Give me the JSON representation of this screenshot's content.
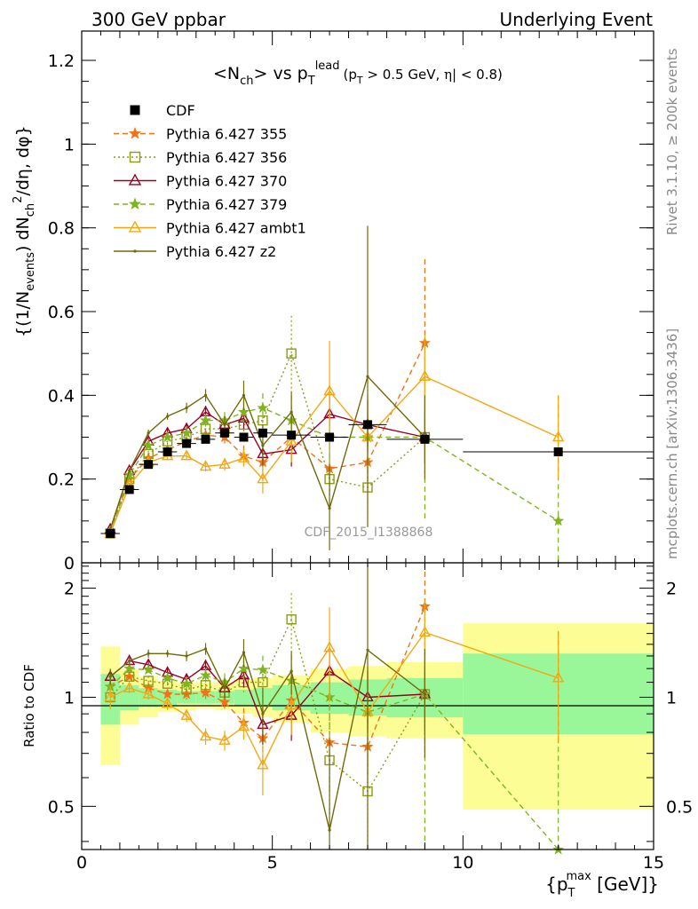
{
  "header": {
    "left": "300 GeV ppbar",
    "right": "Underlying Event"
  },
  "side_labels": {
    "rivet": "Rivet 3.1.10, ≥ 200k events",
    "mcplots": "mcplots.cern.ch [arXiv:1306.3436]"
  },
  "watermark": "CDF_2015_I1388868",
  "chart_data": [
    {
      "type": "line",
      "panel": "main",
      "title": "<N_ch> vs p_T^lead (p_T > 0.5 GeV, |η| < 0.8)",
      "title_parts": {
        "a": "<N",
        "a_sub": "ch",
        "b": "> vs p",
        "b_sub": "T",
        "b_sup": "lead",
        "c": "(p",
        "c_sub": "T",
        "d": " > 0.5 GeV, ",
        "e": "η",
        "f": "| < 0.8)"
      },
      "ylabel": "{(1/N_events) dN_ch^2/dη, dφ}",
      "ylabel_parts": {
        "a": "{(1/N",
        "a_sub": "events",
        "b": ") dN",
        "b_sub": "ch",
        "b_sup": "2",
        "c": "/dη, dφ}"
      },
      "xlim": [
        0,
        15
      ],
      "ylim": [
        0,
        1.27
      ],
      "yticks": [
        0,
        0.2,
        0.4,
        0.6,
        0.8,
        1,
        1.2
      ],
      "ytick_labels": [
        "0",
        "0.2",
        "0.4",
        "0.6",
        "0.8",
        "1",
        "1.2"
      ],
      "legend": [
        {
          "label": "CDF",
          "color": "#000000",
          "marker": "square-filled",
          "dash": "none"
        },
        {
          "label": "Pythia 6.427 355",
          "color": "#f47216",
          "marker": "star",
          "dash": "dashed"
        },
        {
          "label": "Pythia 6.427 356",
          "color": "#8d9a13",
          "marker": "square-open",
          "dash": "dotted"
        },
        {
          "label": "Pythia 6.427 370",
          "color": "#990022",
          "marker": "triangle-open",
          "dash": "solid"
        },
        {
          "label": "Pythia 6.427 379",
          "color": "#7fb41f",
          "marker": "star",
          "dash": "dashed"
        },
        {
          "label": "Pythia 6.427 ambt1",
          "color": "#f3a712",
          "marker": "triangle-open",
          "dash": "solid"
        },
        {
          "label": "Pythia 6.427 z2",
          "color": "#6f6a0a",
          "marker": "dot",
          "dash": "solid"
        }
      ],
      "cdf": {
        "x": [
          0.75,
          1.25,
          1.75,
          2.25,
          2.75,
          3.25,
          3.75,
          4.25,
          4.75,
          5.5,
          6.5,
          7.5,
          9,
          12.5
        ],
        "xerr": [
          0.25,
          0.25,
          0.25,
          0.25,
          0.25,
          0.25,
          0.25,
          0.25,
          0.25,
          0.5,
          0.5,
          0.5,
          1,
          2.5
        ],
        "y": [
          0.07,
          0.175,
          0.235,
          0.265,
          0.285,
          0.295,
          0.31,
          0.3,
          0.31,
          0.305,
          0.3,
          0.33,
          0.295,
          0.265
        ]
      },
      "series": [
        {
          "name": "Pythia 6.427 355",
          "x": [
            0.75,
            1.25,
            1.75,
            2.25,
            2.75,
            3.25,
            3.75,
            4.25,
            4.75,
            5.5,
            6.5,
            7.5,
            9
          ],
          "y": [
            0.075,
            0.2,
            0.25,
            0.27,
            0.29,
            0.305,
            0.3,
            0.255,
            0.24,
            0.3,
            0.225,
            0.24,
            0.525
          ],
          "err": [
            0.005,
            0.006,
            0.008,
            0.008,
            0.01,
            0.012,
            0.015,
            0.025,
            0.03,
            0.04,
            0.06,
            0.05,
            0.2
          ]
        },
        {
          "name": "Pythia 6.427 356",
          "x": [
            0.75,
            1.25,
            1.75,
            2.25,
            2.75,
            3.25,
            3.75,
            4.25,
            4.75,
            5.5,
            6.5,
            7.5,
            9
          ],
          "y": [
            0.07,
            0.2,
            0.26,
            0.29,
            0.3,
            0.32,
            0.32,
            0.33,
            0.34,
            0.5,
            0.2,
            0.18,
            0.3
          ],
          "err": [
            0.005,
            0.006,
            0.008,
            0.008,
            0.01,
            0.012,
            0.015,
            0.02,
            0.03,
            0.09,
            0.06,
            0.06,
            0.1
          ]
        },
        {
          "name": "Pythia 6.427 370",
          "x": [
            0.75,
            1.25,
            1.75,
            2.25,
            2.75,
            3.25,
            3.75,
            4.25,
            4.75,
            5.5,
            6.5,
            7.5,
            9
          ],
          "y": [
            0.08,
            0.22,
            0.29,
            0.31,
            0.32,
            0.36,
            0.33,
            0.345,
            0.26,
            0.27,
            0.355,
            0.33,
            0.3
          ],
          "err": [
            0.004,
            0.006,
            0.008,
            0.01,
            0.012,
            0.015,
            0.02,
            0.025,
            0.03,
            0.04,
            0.06,
            0.06,
            0.06
          ]
        },
        {
          "name": "Pythia 6.427 379",
          "x": [
            0.75,
            1.25,
            1.75,
            2.25,
            2.75,
            3.25,
            3.75,
            4.25,
            4.75,
            5.5,
            6.5,
            7.5,
            9,
            12.5
          ],
          "y": [
            0.075,
            0.21,
            0.28,
            0.3,
            0.31,
            0.34,
            0.34,
            0.36,
            0.37,
            0.34,
            0.3,
            0.3,
            0.3,
            0.1
          ],
          "err": [
            0.005,
            0.006,
            0.008,
            0.01,
            0.012,
            0.015,
            0.02,
            0.025,
            0.035,
            0.06,
            0.06,
            0.06,
            0.2,
            0.3
          ]
        },
        {
          "name": "Pythia 6.427 ambt1",
          "x": [
            0.75,
            1.25,
            1.75,
            2.25,
            2.75,
            3.25,
            3.75,
            4.25,
            4.75,
            5.5,
            6.5,
            7.5,
            9,
            12.5
          ],
          "y": [
            0.07,
            0.185,
            0.24,
            0.255,
            0.255,
            0.23,
            0.235,
            0.25,
            0.2,
            0.29,
            0.41,
            0.3,
            0.445,
            0.3
          ],
          "err": [
            0.005,
            0.006,
            0.008,
            0.01,
            0.01,
            0.012,
            0.015,
            0.02,
            0.035,
            0.05,
            0.12,
            0.1,
            0.1,
            0.1
          ]
        },
        {
          "name": "Pythia 6.427 z2",
          "x": [
            0.75,
            1.25,
            1.75,
            2.25,
            2.75,
            3.25,
            3.75,
            4.25,
            4.75,
            5.5,
            6.5,
            7.5,
            9
          ],
          "y": [
            0.08,
            0.22,
            0.31,
            0.35,
            0.37,
            0.4,
            0.33,
            0.4,
            0.28,
            0.36,
            0.13,
            0.445,
            0.3
          ],
          "err": [
            0.004,
            0.006,
            0.008,
            0.008,
            0.012,
            0.015,
            0.02,
            0.035,
            0.05,
            0.05,
            0.1,
            0.36,
            0.1
          ]
        }
      ]
    },
    {
      "type": "line",
      "panel": "ratio",
      "ylabel": "Ratio to CDF",
      "xlabel": "{p_T^max [GeV]}",
      "xlabel_parts": {
        "a": "{p",
        "sub": "T",
        "sup": "max",
        "b": " [GeV]}"
      },
      "xlim": [
        0,
        15
      ],
      "ylim": [
        0.38,
        2.35
      ],
      "yscale": "log",
      "xticks": [
        0,
        5,
        10,
        15
      ],
      "xtick_labels": [
        "0",
        "5",
        "10",
        "15"
      ],
      "yticks": [
        0.5,
        1,
        2
      ],
      "ytick_labels": [
        "0.5",
        "1",
        "2"
      ],
      "uncertainty_bands": {
        "x_edges": [
          0.5,
          1,
          1.5,
          2,
          2.5,
          3,
          3.5,
          4,
          4.5,
          5,
          6,
          7,
          8,
          10,
          15
        ],
        "yellow_low": [
          0.65,
          0.84,
          0.88,
          0.91,
          0.92,
          0.93,
          0.92,
          0.9,
          0.88,
          0.85,
          0.8,
          0.78,
          0.77,
          0.49
        ],
        "yellow_high": [
          1.38,
          1.2,
          1.14,
          1.11,
          1.1,
          1.1,
          1.1,
          1.12,
          1.13,
          1.15,
          1.2,
          1.22,
          1.25,
          1.6
        ],
        "green_low": [
          0.84,
          0.92,
          0.94,
          0.95,
          0.96,
          0.96,
          0.96,
          0.95,
          0.94,
          0.92,
          0.9,
          0.89,
          0.88,
          0.79
        ],
        "green_high": [
          1.16,
          1.08,
          1.06,
          1.05,
          1.04,
          1.04,
          1.04,
          1.05,
          1.06,
          1.08,
          1.1,
          1.12,
          1.13,
          1.32
        ]
      },
      "series": [
        {
          "name": "Pythia 6.427 355",
          "x": [
            0.75,
            1.25,
            1.75,
            2.25,
            2.75,
            3.25,
            3.75,
            4.25,
            4.75,
            5.5,
            6.5,
            7.5,
            9
          ],
          "y": [
            1.07,
            1.14,
            1.06,
            1.02,
            1.02,
            1.03,
            0.97,
            0.85,
            0.77,
            0.98,
            0.75,
            0.73,
            1.78
          ]
        },
        {
          "name": "Pythia 6.427 356",
          "x": [
            0.75,
            1.25,
            1.75,
            2.25,
            2.75,
            3.25,
            3.75,
            4.25,
            4.75,
            5.5,
            6.5,
            7.5,
            9
          ],
          "y": [
            1.0,
            1.14,
            1.11,
            1.09,
            1.05,
            1.08,
            1.03,
            1.1,
            1.1,
            1.64,
            0.67,
            0.55,
            1.02
          ]
        },
        {
          "name": "Pythia 6.427 370",
          "x": [
            0.75,
            1.25,
            1.75,
            2.25,
            2.75,
            3.25,
            3.75,
            4.25,
            4.75,
            5.5,
            6.5,
            7.5,
            9
          ],
          "y": [
            1.14,
            1.26,
            1.23,
            1.17,
            1.12,
            1.22,
            1.06,
            1.15,
            0.84,
            0.89,
            1.18,
            1.0,
            1.02
          ]
        },
        {
          "name": "Pythia 6.427 379",
          "x": [
            0.75,
            1.25,
            1.75,
            2.25,
            2.75,
            3.25,
            3.75,
            4.25,
            4.75,
            5.5,
            6.5,
            7.5,
            9,
            12.5
          ],
          "y": [
            1.07,
            1.2,
            1.19,
            1.13,
            1.09,
            1.15,
            1.1,
            1.2,
            1.19,
            1.11,
            1.0,
            0.91,
            1.02,
            0.38
          ]
        },
        {
          "name": "Pythia 6.427 ambt1",
          "x": [
            0.75,
            1.25,
            1.75,
            2.25,
            2.75,
            3.25,
            3.75,
            4.25,
            4.75,
            5.5,
            6.5,
            7.5,
            9,
            12.5
          ],
          "y": [
            1.0,
            1.06,
            1.02,
            0.96,
            0.89,
            0.78,
            0.76,
            0.83,
            0.65,
            0.95,
            1.37,
            0.91,
            1.51,
            1.13
          ]
        },
        {
          "name": "Pythia 6.427 z2",
          "x": [
            0.75,
            1.25,
            1.75,
            2.25,
            2.75,
            3.25,
            3.75,
            4.25,
            4.75,
            5.5,
            6.5,
            7.5,
            9
          ],
          "y": [
            1.14,
            1.26,
            1.32,
            1.32,
            1.3,
            1.36,
            1.06,
            1.33,
            0.9,
            1.18,
            0.43,
            1.35,
            1.02
          ]
        }
      ]
    }
  ]
}
